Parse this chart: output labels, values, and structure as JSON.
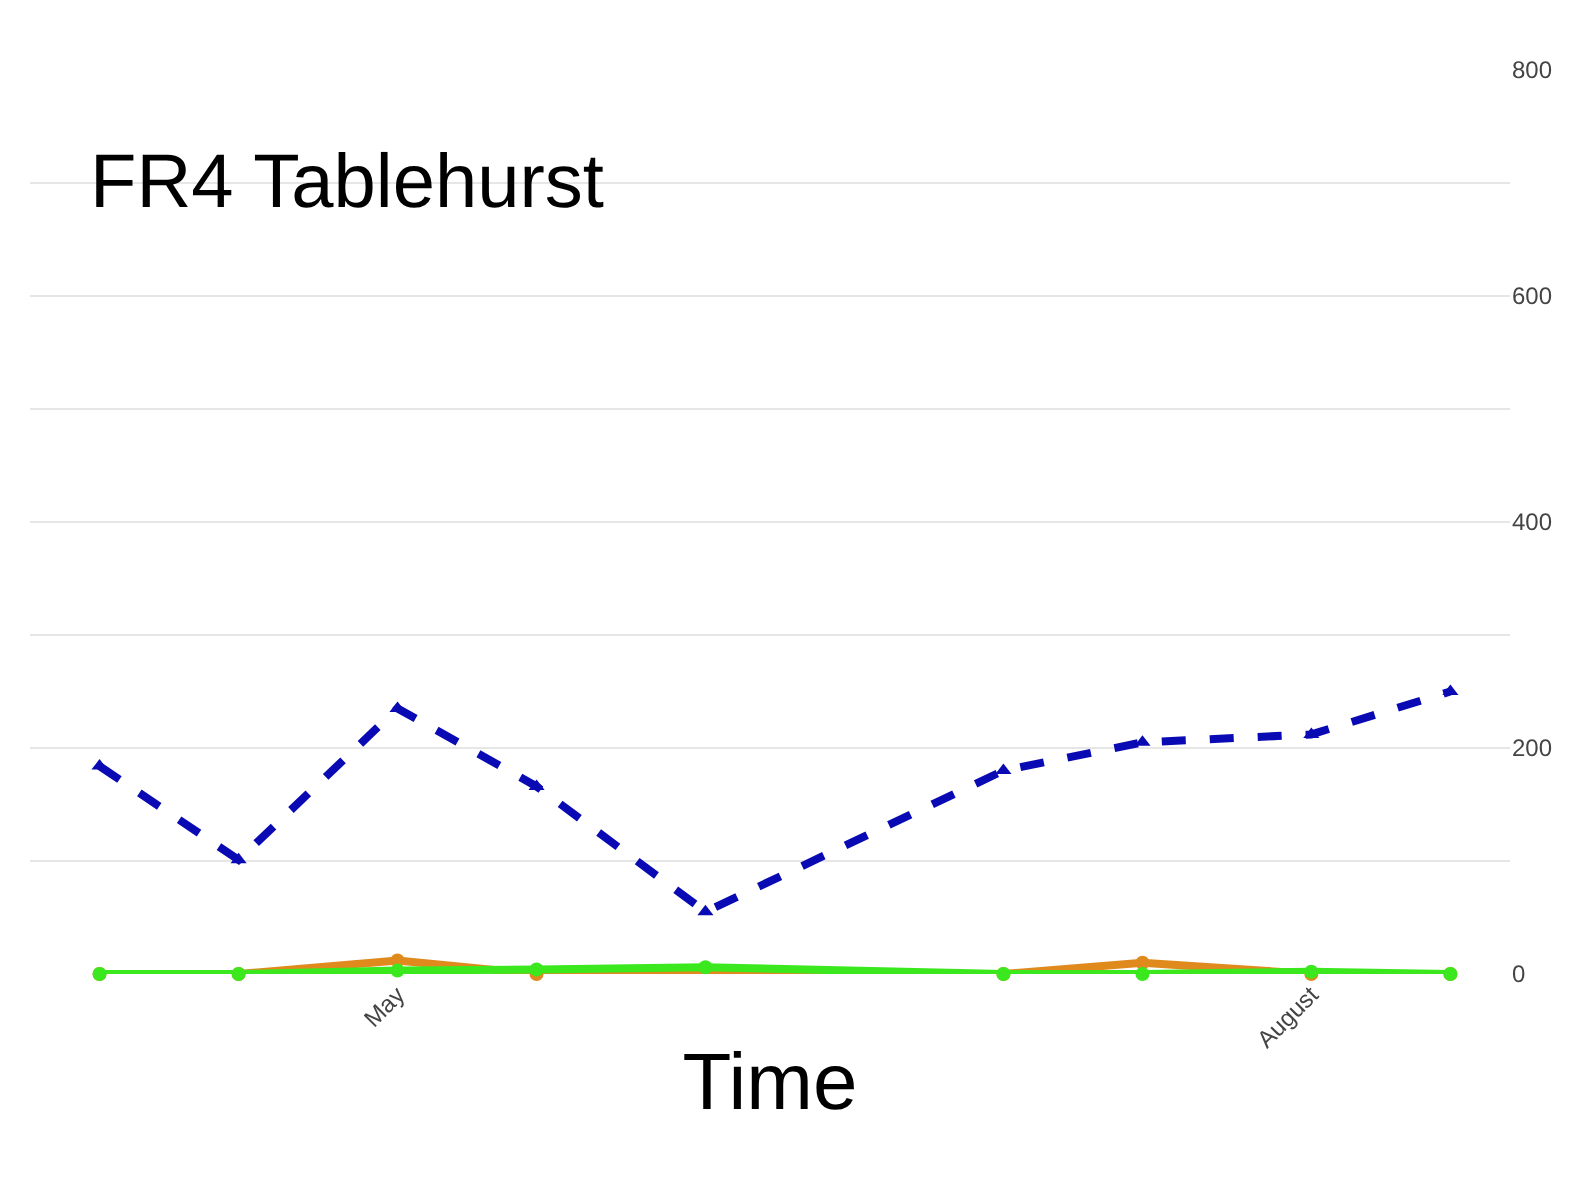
{
  "chart_data": {
    "type": "line",
    "title": "FR4 Tablehurst",
    "xlabel": "Time",
    "x": [
      "--04-01",
      "--04-15",
      "--05-01",
      "--05-15",
      "--06-01",
      "--07-01",
      "--07-15",
      "--08-01",
      "--08-15"
    ],
    "xlim": [
      "--03-25",
      "--08-21"
    ],
    "xticks": [
      {
        "value": "--05-01",
        "label": "May"
      },
      {
        "value": "--08-01",
        "label": "August"
      }
    ],
    "ylim": [
      0,
      800
    ],
    "yticks": [
      0,
      {
        "value": 100,
        "label": null
      },
      200,
      {
        "value": 300,
        "label": null
      },
      400,
      {
        "value": 500,
        "label": null
      },
      600,
      {
        "value": 700,
        "label": null
      },
      800
    ],
    "grid": "y",
    "series": [
      {
        "color": "#0a0ab4",
        "values": [
          184,
          101,
          235,
          166,
          55,
          180,
          205,
          212,
          250
        ],
        "marker": "triangle",
        "line_style": "dashed"
      },
      {
        "color": "#e08a1e",
        "values": [
          0,
          0,
          12,
          0,
          null,
          0,
          10,
          0,
          0
        ],
        "marker": "circle",
        "line_style": "solid"
      },
      {
        "color": "#3be81e",
        "values": [
          0,
          0,
          3,
          4,
          6,
          0,
          0,
          2,
          0
        ],
        "marker": "circle",
        "line_style": "solid"
      }
    ]
  }
}
